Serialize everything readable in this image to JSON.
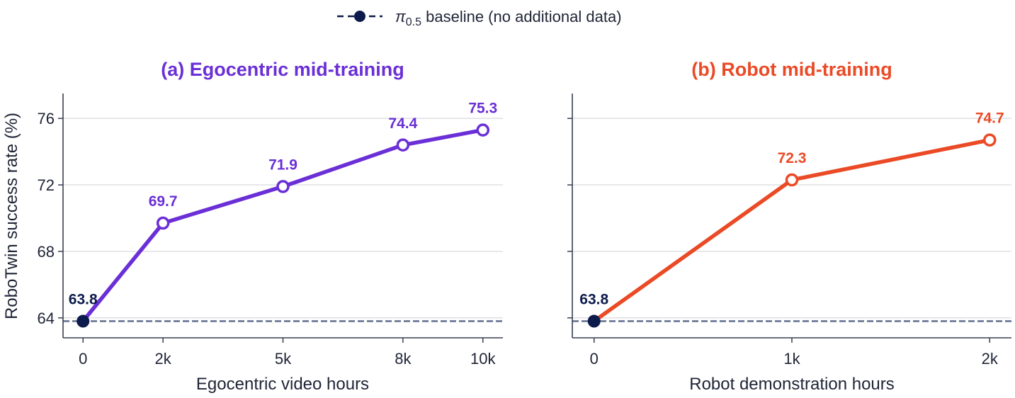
{
  "legend": {
    "symbol_main": "π",
    "symbol_sub": "0.5",
    "label": " baseline (no additional data)",
    "placement": "top-center",
    "line_style": "dashed",
    "color": "#0d1b4c"
  },
  "colors": {
    "baseline": "#0d1b4c",
    "baseline_line": "#6f7b97",
    "grid": "#dcdde2",
    "axis": "#3a3f52",
    "text": "#1f2436"
  },
  "shared_ylabel": "RoboTwin success rate (%)",
  "chart_data": [
    {
      "type": "line",
      "title": "(a) Egocentric mid-training",
      "color": "#6a2fd6",
      "xlabel": "Egocentric video hours",
      "ylabel": "RoboTwin success rate (%)",
      "categories": [
        "0",
        "2k",
        "5k",
        "8k",
        "10k"
      ],
      "x": [
        0,
        2000,
        5000,
        8000,
        10000
      ],
      "values": [
        63.8,
        69.7,
        71.9,
        74.4,
        75.3
      ],
      "data_labels": [
        "63.8",
        "69.7",
        "71.9",
        "74.4",
        "75.3"
      ],
      "baseline": 63.8,
      "yticks": [
        64,
        68,
        72,
        76
      ],
      "ylim": [
        62.8,
        77.5
      ],
      "xlim": [
        -500,
        10500
      ],
      "grid": true
    },
    {
      "type": "line",
      "title": "(b) Robot mid-training",
      "color": "#ea4a26",
      "xlabel": "Robot demonstration hours",
      "ylabel": "",
      "categories": [
        "0",
        "1k",
        "2k"
      ],
      "x": [
        0,
        1000,
        2000
      ],
      "values": [
        63.8,
        72.3,
        74.7
      ],
      "data_labels": [
        "63.8",
        "72.3",
        "74.7"
      ],
      "baseline": 63.8,
      "yticks": [
        64,
        68,
        72,
        76
      ],
      "ylim": [
        62.8,
        77.5
      ],
      "xlim": [
        -110,
        2110
      ],
      "grid": true
    }
  ]
}
